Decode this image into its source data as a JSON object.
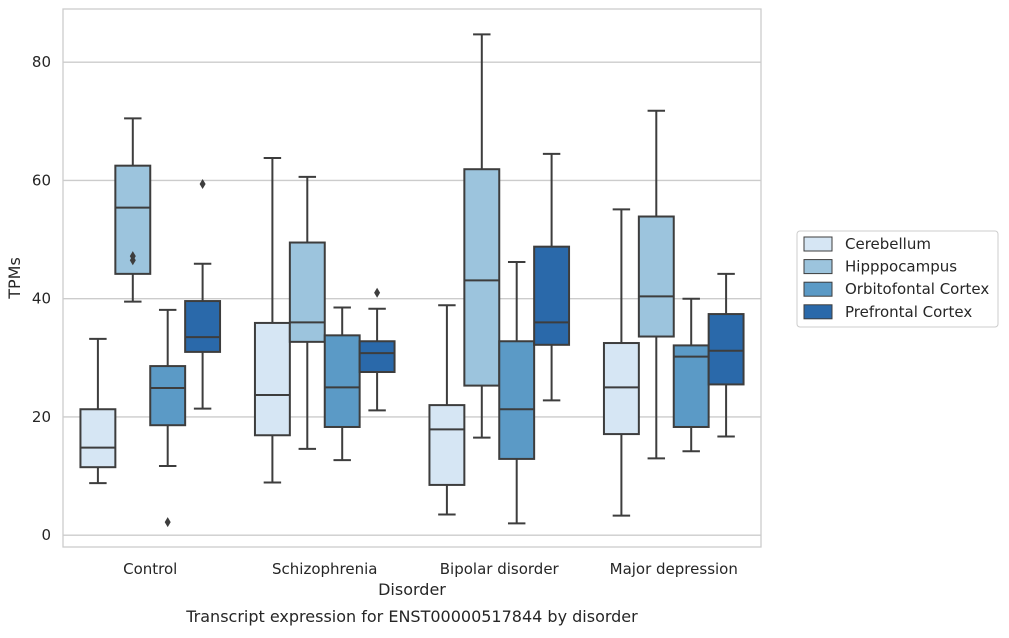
{
  "chart_data": {
    "type": "box",
    "caption": "Transcript expression for ENST00000517844 by disorder",
    "xlabel": "Disorder",
    "ylabel": "TPMs",
    "ylim": [
      -2,
      89
    ],
    "yticks": [
      0,
      20,
      40,
      60,
      80
    ],
    "grid": "horizontal",
    "legend_position": "right",
    "categories": [
      "Control",
      "Schizophrenia",
      "Bipolar disorder",
      "Major depression"
    ],
    "series": [
      {
        "name": "Cerebellum",
        "color": "#d6e6f4",
        "boxes": [
          {
            "whisker_low": 8.8,
            "q1": 11.5,
            "median": 14.8,
            "q3": 21.3,
            "whisker_high": 33.2,
            "outliers": []
          },
          {
            "whisker_low": 8.9,
            "q1": 16.9,
            "median": 23.7,
            "q3": 35.9,
            "whisker_high": 63.8,
            "outliers": []
          },
          {
            "whisker_low": 3.5,
            "q1": 8.5,
            "median": 17.9,
            "q3": 22.0,
            "whisker_high": 38.9,
            "outliers": []
          },
          {
            "whisker_low": 3.3,
            "q1": 17.1,
            "median": 25.0,
            "q3": 32.5,
            "whisker_high": 55.1,
            "outliers": []
          }
        ]
      },
      {
        "name": "Hipppocampus",
        "color": "#9cc4dd",
        "boxes": [
          {
            "whisker_low": 39.5,
            "q1": 44.2,
            "median": 55.4,
            "q3": 62.5,
            "whisker_high": 70.5,
            "outliers": [
              46.5,
              47.2
            ]
          },
          {
            "whisker_low": 14.6,
            "q1": 32.7,
            "median": 36.0,
            "q3": 49.5,
            "whisker_high": 60.6,
            "outliers": []
          },
          {
            "whisker_low": 16.5,
            "q1": 25.3,
            "median": 43.1,
            "q3": 61.9,
            "whisker_high": 84.7,
            "outliers": []
          },
          {
            "whisker_low": 13.0,
            "q1": 33.6,
            "median": 40.4,
            "q3": 53.9,
            "whisker_high": 71.8,
            "outliers": []
          }
        ]
      },
      {
        "name": "Orbitofontal Cortex",
        "color": "#5b9ac6",
        "boxes": [
          {
            "whisker_low": 11.7,
            "q1": 18.6,
            "median": 24.9,
            "q3": 28.6,
            "whisker_high": 38.1,
            "outliers": [
              2.2
            ]
          },
          {
            "whisker_low": 12.7,
            "q1": 18.3,
            "median": 25.0,
            "q3": 33.8,
            "whisker_high": 38.5,
            "outliers": []
          },
          {
            "whisker_low": 2.0,
            "q1": 12.9,
            "median": 21.3,
            "q3": 32.8,
            "whisker_high": 46.2,
            "outliers": []
          },
          {
            "whisker_low": 14.2,
            "q1": 18.3,
            "median": 30.2,
            "q3": 32.1,
            "whisker_high": 40.0,
            "outliers": []
          }
        ]
      },
      {
        "name": "Prefrontal Cortex",
        "color": "#2a69aa",
        "boxes": [
          {
            "whisker_low": 21.4,
            "q1": 31.0,
            "median": 33.5,
            "q3": 39.6,
            "whisker_high": 45.9,
            "outliers": [
              59.4
            ]
          },
          {
            "whisker_low": 21.1,
            "q1": 27.6,
            "median": 30.8,
            "q3": 32.8,
            "whisker_high": 38.3,
            "outliers": [
              41.0
            ]
          },
          {
            "whisker_low": 22.8,
            "q1": 32.2,
            "median": 36.0,
            "q3": 48.8,
            "whisker_high": 64.5,
            "outliers": []
          },
          {
            "whisker_low": 16.7,
            "q1": 25.5,
            "median": 31.2,
            "q3": 37.4,
            "whisker_high": 44.2,
            "outliers": []
          }
        ]
      }
    ]
  }
}
